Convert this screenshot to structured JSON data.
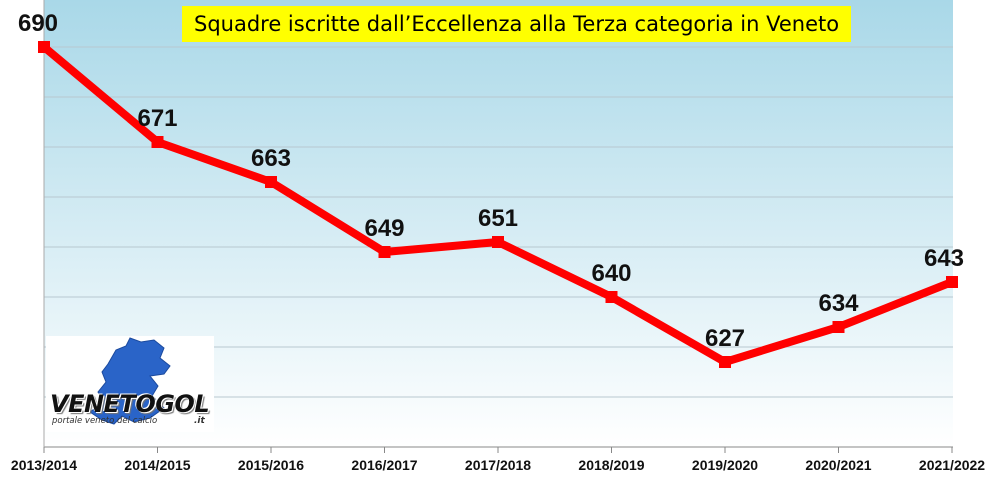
{
  "chart_data": {
    "type": "line",
    "title": "Squadre iscritte dall’Eccellenza alla Terza categoria in Veneto",
    "categories": [
      "2013/2014",
      "2014/2015",
      "2015/2016",
      "2016/2017",
      "2017/2018",
      "2018/2019",
      "2019/2020",
      "2020/2021",
      "2021/2022"
    ],
    "series": [
      {
        "values": [
          690,
          671,
          663,
          649,
          651,
          640,
          627,
          634,
          643
        ]
      }
    ],
    "ylim": [
      610,
      690
    ],
    "grid": true,
    "colors": {
      "line": "#ff0000",
      "marker": "#ff0000",
      "gradient_top": "#a9d8e8",
      "gradient_bottom": "#ffffff",
      "gridline": "#b8c8d0",
      "title_background": "#ffff00"
    }
  },
  "logo": {
    "name": "VENETOGOL",
    "subtitle": "portale veneto del calcio",
    "suffix": ".it"
  }
}
